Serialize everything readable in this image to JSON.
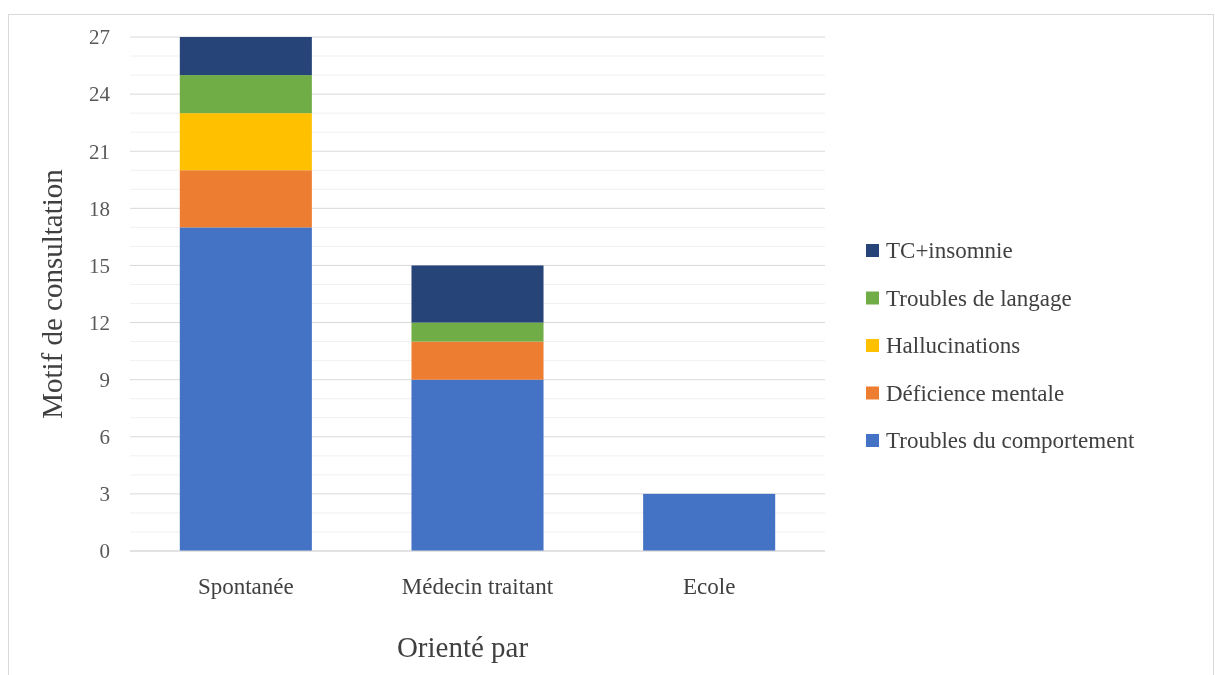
{
  "chart_data": {
    "type": "bar",
    "stacked": true,
    "xlabel": "Orienté par",
    "ylabel": "Motif de consultation",
    "categories": [
      "Spontanée",
      "Médecin traitant",
      "Ecole"
    ],
    "series": [
      {
        "name": "Troubles du comportement",
        "color": "#4472c4",
        "values": [
          17,
          9,
          3
        ]
      },
      {
        "name": "Déficience mentale",
        "color": "#ed7d31",
        "values": [
          3,
          2,
          0
        ]
      },
      {
        "name": "Hallucinations",
        "color": "#ffc000",
        "values": [
          3,
          0,
          0
        ]
      },
      {
        "name": "Troubles de langage",
        "color": "#70ad47",
        "values": [
          2,
          1,
          0
        ]
      },
      {
        "name": "TC+insomnie",
        "color": "#264478",
        "values": [
          2,
          3,
          0
        ]
      }
    ],
    "ylim": [
      0,
      27
    ],
    "yticks": [
      0,
      {
        "value": 1,
        "label": null
      },
      {
        "value": 2,
        "label": null
      },
      3,
      {
        "value": 4,
        "label": null
      },
      {
        "value": 5,
        "label": null
      },
      6,
      {
        "value": 7,
        "label": null
      },
      {
        "value": 8,
        "label": null
      },
      9,
      {
        "value": 10,
        "label": null
      },
      {
        "value": 11,
        "label": null
      },
      12,
      {
        "value": 13,
        "label": null
      },
      {
        "value": 14,
        "label": null
      },
      15,
      {
        "value": 16,
        "label": null
      },
      {
        "value": 17,
        "label": null
      },
      18,
      {
        "value": 19,
        "label": null
      },
      {
        "value": 20,
        "label": null
      },
      21,
      {
        "value": 22,
        "label": null
      },
      {
        "value": 23,
        "label": null
      },
      24,
      {
        "value": 25,
        "label": null
      },
      {
        "value": 26,
        "label": null
      },
      27
    ],
    "grid": "y",
    "legend": "right"
  }
}
